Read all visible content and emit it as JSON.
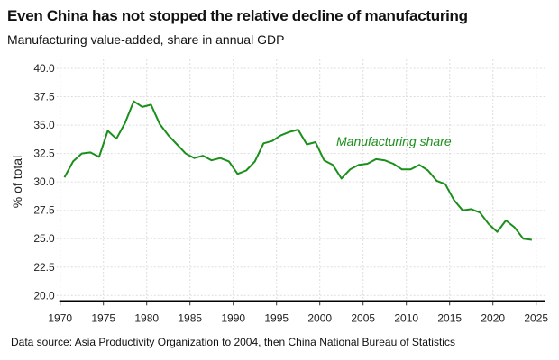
{
  "chart_data": {
    "type": "line",
    "title": "Even China has not stopped the relative decline of manufacturing",
    "subtitle": "Manufacturing value-added, share in annual GDP",
    "ylabel": "% of total",
    "xlabel": "",
    "source": "Data source: Asia Productivity Organization to 2004, then China National Bureau of Statistics",
    "xlim": [
      1970,
      2025
    ],
    "ylim": [
      20,
      40
    ],
    "xticks": [
      "1970",
      "1975",
      "1980",
      "1985",
      "1990",
      "1995",
      "2000",
      "2005",
      "2010",
      "2015",
      "2020",
      "2025"
    ],
    "yticks": [
      "20.0",
      "22.5",
      "25.0",
      "27.5",
      "30.0",
      "32.5",
      "35.0",
      "37.5",
      "40.0"
    ],
    "grid": true,
    "legend": "none",
    "series": [
      {
        "name": "Manufacturing share",
        "color": "#1a8f1a",
        "x": [
          1970,
          1971,
          1972,
          1973,
          1974,
          1975,
          1976,
          1977,
          1978,
          1979,
          1980,
          1981,
          1982,
          1983,
          1984,
          1985,
          1986,
          1987,
          1988,
          1989,
          1990,
          1991,
          1992,
          1993,
          1994,
          1995,
          1996,
          1997,
          1998,
          1999,
          2000,
          2001,
          2002,
          2003,
          2004,
          2005,
          2006,
          2007,
          2008,
          2009,
          2010,
          2011,
          2012,
          2013,
          2014,
          2015,
          2016,
          2017,
          2018,
          2019,
          2020,
          2021,
          2022,
          2023,
          2024
        ],
        "values": [
          30.4,
          31.8,
          32.5,
          32.6,
          32.2,
          34.5,
          33.8,
          35.2,
          37.1,
          36.6,
          36.8,
          35.1,
          34.1,
          33.3,
          32.5,
          32.1,
          32.3,
          31.9,
          32.1,
          31.8,
          30.7,
          31.0,
          31.8,
          33.4,
          33.6,
          34.1,
          34.4,
          34.6,
          33.3,
          33.5,
          31.9,
          31.5,
          30.3,
          31.1,
          31.5,
          31.6,
          32.0,
          31.9,
          31.6,
          31.1,
          31.1,
          31.5,
          31.0,
          30.1,
          29.8,
          28.4,
          27.5,
          27.6,
          27.3,
          26.3,
          25.6,
          26.6,
          26.0,
          25.0,
          24.9
        ]
      }
    ]
  }
}
